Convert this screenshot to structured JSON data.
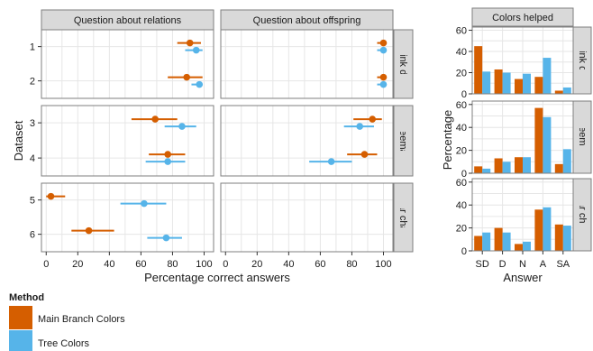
{
  "colors": {
    "main_branch": "#d55e00",
    "tree": "#56b4e9"
  },
  "legend": {
    "title": "Method",
    "items": [
      {
        "label": "Main Branch Colors",
        "color": "#d55e00"
      },
      {
        "label": "Tree Colors",
        "color": "#56b4e9"
      }
    ]
  },
  "chart_data": [
    {
      "type": "scatter",
      "xlabel": "Percentage correct answers",
      "ylabel": "Dataset",
      "xlim": [
        -3,
        106
      ],
      "xticks": [
        0,
        20,
        40,
        60,
        80,
        100
      ],
      "columns": [
        "Question about relations",
        "Question about offspring"
      ],
      "rows": [
        {
          "label": "Node–link diagram",
          "datasets": [
            "1",
            "2"
          ]
        },
        {
          "label": "Treemap",
          "datasets": [
            "3",
            "4"
          ]
        },
        {
          "label": "Bar chart",
          "datasets": [
            "5",
            "6"
          ]
        }
      ],
      "series": [
        {
          "name": "Main Branch Colors",
          "points": [
            {
              "column": 0,
              "dataset": "1",
              "x": 91,
              "lo": 83,
              "hi": 98
            },
            {
              "column": 0,
              "dataset": "2",
              "x": 89,
              "lo": 77,
              "hi": 99
            },
            {
              "column": 0,
              "dataset": "3",
              "x": 69,
              "lo": 54,
              "hi": 83
            },
            {
              "column": 0,
              "dataset": "4",
              "x": 77,
              "lo": 65,
              "hi": 88
            },
            {
              "column": 0,
              "dataset": "5",
              "x": 3,
              "lo": 0,
              "hi": 12
            },
            {
              "column": 0,
              "dataset": "6",
              "x": 27,
              "lo": 16,
              "hi": 43
            },
            {
              "column": 1,
              "dataset": "1",
              "x": 100,
              "lo": 96,
              "hi": 100
            },
            {
              "column": 1,
              "dataset": "2",
              "x": 100,
              "lo": 96,
              "hi": 100
            },
            {
              "column": 1,
              "dataset": "3",
              "x": 93,
              "lo": 81,
              "hi": 99
            },
            {
              "column": 1,
              "dataset": "4",
              "x": 88,
              "lo": 77,
              "hi": 96
            }
          ]
        },
        {
          "name": "Tree Colors",
          "points": [
            {
              "column": 0,
              "dataset": "1",
              "x": 95,
              "lo": 88,
              "hi": 99
            },
            {
              "column": 0,
              "dataset": "2",
              "x": 97,
              "lo": 92,
              "hi": 99
            },
            {
              "column": 0,
              "dataset": "3",
              "x": 86,
              "lo": 75,
              "hi": 95
            },
            {
              "column": 0,
              "dataset": "4",
              "x": 77,
              "lo": 63,
              "hi": 88
            },
            {
              "column": 0,
              "dataset": "5",
              "x": 62,
              "lo": 47,
              "hi": 76
            },
            {
              "column": 0,
              "dataset": "6",
              "x": 76,
              "lo": 64,
              "hi": 86
            },
            {
              "column": 1,
              "dataset": "1",
              "x": 100,
              "lo": 96,
              "hi": 100
            },
            {
              "column": 1,
              "dataset": "2",
              "x": 100,
              "lo": 96,
              "hi": 100
            },
            {
              "column": 1,
              "dataset": "3",
              "x": 85,
              "lo": 75,
              "hi": 94
            },
            {
              "column": 1,
              "dataset": "4",
              "x": 67,
              "lo": 53,
              "hi": 80
            }
          ]
        }
      ]
    },
    {
      "type": "bar",
      "title": "Colors helped",
      "xlabel": "Answer",
      "ylabel": "Percentage",
      "categories": [
        "SD",
        "D",
        "N",
        "A",
        "SA"
      ],
      "ylim": [
        0,
        63
      ],
      "yticks": [
        0,
        20,
        40,
        60
      ],
      "rows": [
        {
          "label": "Node–link diagram",
          "series": [
            {
              "name": "Main Branch Colors",
              "values": [
                45,
                23,
                14,
                16,
                3
              ]
            },
            {
              "name": "Tree Colors",
              "values": [
                21,
                20,
                19,
                34,
                6
              ]
            }
          ]
        },
        {
          "label": "Treemap",
          "series": [
            {
              "name": "Main Branch Colors",
              "values": [
                6,
                13,
                14,
                57,
                8
              ]
            },
            {
              "name": "Tree Colors",
              "values": [
                4,
                10,
                14,
                49,
                21
              ]
            }
          ]
        },
        {
          "label": "Bar chart",
          "series": [
            {
              "name": "Main Branch Colors",
              "values": [
                13,
                20,
                6,
                36,
                23
              ]
            },
            {
              "name": "Tree Colors",
              "values": [
                16,
                16,
                8,
                38,
                22
              ]
            }
          ]
        }
      ]
    }
  ]
}
